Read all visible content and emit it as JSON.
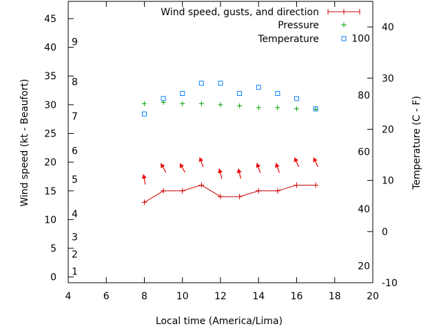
{
  "chart_data": {
    "type": "line",
    "xlabel": "Local time (America/Lima)",
    "ylabel": "Wind speed (kt - Beaufort)",
    "y2label": "Temperature (C - F)",
    "xlim": [
      4,
      20
    ],
    "ylim": [
      -1,
      48
    ],
    "y2lim": [
      -10,
      45
    ],
    "x_ticks": [
      "4",
      "6",
      "8",
      "10",
      "12",
      "14",
      "16",
      "18",
      "20"
    ],
    "y_ticks": [
      "0",
      "5",
      "10",
      "15",
      "20",
      "25",
      "30",
      "35",
      "40",
      "45"
    ],
    "y2_ticks": [
      "-10",
      "0",
      "10",
      "20",
      "30",
      "40"
    ],
    "beaufort_labels": [
      {
        "text": "1",
        "y": 1
      },
      {
        "text": "2",
        "y": 4
      },
      {
        "text": "3",
        "y": 7
      },
      {
        "text": "4",
        "y": 11
      },
      {
        "text": "5",
        "y": 17
      },
      {
        "text": "6",
        "y": 22
      },
      {
        "text": "7",
        "y": 28
      },
      {
        "text": "8",
        "y": 34
      },
      {
        "text": "9",
        "y": 41
      }
    ],
    "fahrenheit_labels": [
      {
        "text": "20",
        "y2": -6.7
      },
      {
        "text": "40",
        "y2": 4.4
      },
      {
        "text": "60",
        "y2": 15.6
      },
      {
        "text": "80",
        "y2": 26.7
      },
      {
        "text": "100",
        "y2": 37.8
      }
    ],
    "legend": {
      "placement": "top-right",
      "entries": [
        "Wind speed, gusts, and direction",
        "Pressure",
        "Temperature"
      ]
    },
    "colors": {
      "wind": "#cc0000",
      "pressure": "#00a000",
      "temperature": "#0080ff",
      "arrows": "#ee0000"
    },
    "x": [
      8,
      9,
      10,
      11,
      12,
      13,
      14,
      15,
      16,
      17
    ],
    "series": [
      {
        "name": "Wind speed, gusts, and direction",
        "axis": "y",
        "values": [
          13,
          15,
          15,
          16,
          14,
          14,
          15,
          15,
          16,
          16
        ]
      },
      {
        "name": "Pressure",
        "axis": "y",
        "values": [
          30.2,
          30.4,
          30.2,
          30.2,
          30.0,
          29.8,
          29.5,
          29.5,
          29.3,
          29.2
        ]
      },
      {
        "name": "Temperature",
        "axis": "y2",
        "values": [
          23,
          26,
          27,
          29,
          29,
          27,
          28.2,
          27,
          26,
          24
        ]
      }
    ],
    "wind_direction_arrows": {
      "values_kt": [
        17,
        19,
        19,
        20,
        18,
        18,
        19,
        19,
        20,
        20
      ],
      "direction_deg": [
        350,
        330,
        330,
        340,
        345,
        345,
        340,
        340,
        335,
        335
      ]
    }
  }
}
